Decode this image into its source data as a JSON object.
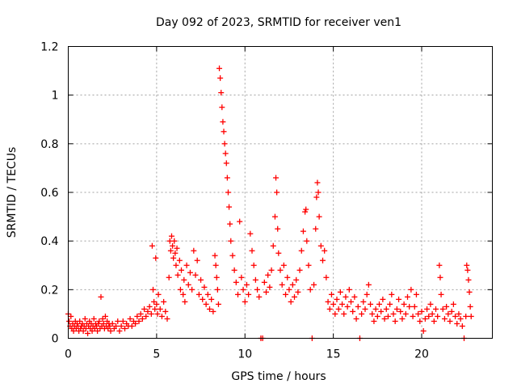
{
  "chart_data": {
    "type": "scatter",
    "title": "Day 092 of 2023, SRMTID for receiver ven1",
    "xlabel": "GPS time / hours",
    "ylabel": "SRMTID / TECUs",
    "xlim": [
      0,
      24
    ],
    "ylim": [
      0,
      1.2
    ],
    "xticks": [
      0,
      5,
      10,
      15,
      20
    ],
    "xtick_labels": [
      "0",
      "5",
      "10",
      "15",
      "20"
    ],
    "yticks": [
      0,
      0.2,
      0.4,
      0.6,
      0.8,
      1.0,
      1.2
    ],
    "ytick_labels": [
      "0",
      "0.2",
      "0.4",
      "0.6",
      "0.8",
      "1",
      "1.2"
    ],
    "grid": true,
    "marker": "plus",
    "color": "#ff0000",
    "series": [
      {
        "name": "SRMTID",
        "points": [
          [
            0.0,
            0.1
          ],
          [
            0.05,
            0.07
          ],
          [
            0.1,
            0.05
          ],
          [
            0.15,
            0.09
          ],
          [
            0.2,
            0.04
          ],
          [
            0.25,
            0.06
          ],
          [
            0.3,
            0.03
          ],
          [
            0.35,
            0.05
          ],
          [
            0.4,
            0.07
          ],
          [
            0.45,
            0.04
          ],
          [
            0.5,
            0.06
          ],
          [
            0.55,
            0.05
          ],
          [
            0.6,
            0.03
          ],
          [
            0.65,
            0.07
          ],
          [
            0.7,
            0.04
          ],
          [
            0.75,
            0.05
          ],
          [
            0.8,
            0.06
          ],
          [
            0.85,
            0.03
          ],
          [
            0.9,
            0.05
          ],
          [
            0.95,
            0.08
          ],
          [
            1.0,
            0.04
          ],
          [
            1.05,
            0.06
          ],
          [
            1.1,
            0.02
          ],
          [
            1.15,
            0.05
          ],
          [
            1.2,
            0.07
          ],
          [
            1.25,
            0.04
          ],
          [
            1.3,
            0.06
          ],
          [
            1.35,
            0.03
          ],
          [
            1.4,
            0.05
          ],
          [
            1.45,
            0.08
          ],
          [
            1.5,
            0.04
          ],
          [
            1.55,
            0.06
          ],
          [
            1.6,
            0.05
          ],
          [
            1.65,
            0.03
          ],
          [
            1.7,
            0.06
          ],
          [
            1.75,
            0.07
          ],
          [
            1.8,
            0.04
          ],
          [
            1.85,
            0.17
          ],
          [
            1.9,
            0.05
          ],
          [
            1.95,
            0.08
          ],
          [
            2.0,
            0.06
          ],
          [
            2.05,
            0.04
          ],
          [
            2.1,
            0.09
          ],
          [
            2.15,
            0.05
          ],
          [
            2.2,
            0.07
          ],
          [
            2.25,
            0.04
          ],
          [
            2.3,
            0.06
          ],
          [
            2.35,
            0.05
          ],
          [
            2.4,
            0.03
          ],
          [
            2.5,
            0.06
          ],
          [
            2.6,
            0.04
          ],
          [
            2.7,
            0.05
          ],
          [
            2.8,
            0.07
          ],
          [
            2.9,
            0.03
          ],
          [
            3.0,
            0.05
          ],
          [
            3.1,
            0.07
          ],
          [
            3.2,
            0.04
          ],
          [
            3.3,
            0.06
          ],
          [
            3.4,
            0.05
          ],
          [
            3.5,
            0.08
          ],
          [
            3.6,
            0.05
          ],
          [
            3.7,
            0.07
          ],
          [
            3.8,
            0.06
          ],
          [
            3.9,
            0.09
          ],
          [
            4.0,
            0.07
          ],
          [
            4.1,
            0.1
          ],
          [
            4.2,
            0.08
          ],
          [
            4.3,
            0.12
          ],
          [
            4.4,
            0.09
          ],
          [
            4.5,
            0.11
          ],
          [
            4.6,
            0.13
          ],
          [
            4.7,
            0.1
          ],
          [
            4.75,
            0.38
          ],
          [
            4.8,
            0.2
          ],
          [
            4.85,
            0.15
          ],
          [
            4.9,
            0.12
          ],
          [
            4.95,
            0.33
          ],
          [
            5.0,
            0.14
          ],
          [
            5.05,
            0.1
          ],
          [
            5.1,
            0.18
          ],
          [
            5.2,
            0.12
          ],
          [
            5.3,
            0.09
          ],
          [
            5.4,
            0.15
          ],
          [
            5.5,
            0.11
          ],
          [
            5.6,
            0.08
          ],
          [
            5.7,
            0.25
          ],
          [
            5.75,
            0.4
          ],
          [
            5.8,
            0.36
          ],
          [
            5.85,
            0.42
          ],
          [
            5.9,
            0.38
          ],
          [
            5.95,
            0.33
          ],
          [
            6.0,
            0.4
          ],
          [
            6.05,
            0.35
          ],
          [
            6.1,
            0.3
          ],
          [
            6.15,
            0.37
          ],
          [
            6.2,
            0.26
          ],
          [
            6.3,
            0.32
          ],
          [
            6.35,
            0.2
          ],
          [
            6.4,
            0.28
          ],
          [
            6.5,
            0.18
          ],
          [
            6.55,
            0.24
          ],
          [
            6.6,
            0.15
          ],
          [
            6.7,
            0.3
          ],
          [
            6.8,
            0.22
          ],
          [
            6.9,
            0.27
          ],
          [
            7.0,
            0.2
          ],
          [
            7.1,
            0.36
          ],
          [
            7.2,
            0.26
          ],
          [
            7.3,
            0.32
          ],
          [
            7.4,
            0.18
          ],
          [
            7.5,
            0.24
          ],
          [
            7.6,
            0.16
          ],
          [
            7.7,
            0.21
          ],
          [
            7.8,
            0.14
          ],
          [
            7.9,
            0.18
          ],
          [
            8.0,
            0.12
          ],
          [
            8.1,
            0.16
          ],
          [
            8.2,
            0.11
          ],
          [
            8.3,
            0.34
          ],
          [
            8.35,
            0.3
          ],
          [
            8.4,
            0.25
          ],
          [
            8.45,
            0.2
          ],
          [
            8.5,
            0.14
          ],
          [
            8.55,
            1.11
          ],
          [
            8.6,
            1.07
          ],
          [
            8.65,
            1.01
          ],
          [
            8.7,
            0.95
          ],
          [
            8.75,
            0.89
          ],
          [
            8.8,
            0.85
          ],
          [
            8.85,
            0.8
          ],
          [
            8.9,
            0.76
          ],
          [
            8.95,
            0.72
          ],
          [
            9.0,
            0.66
          ],
          [
            9.05,
            0.6
          ],
          [
            9.1,
            0.54
          ],
          [
            9.15,
            0.47
          ],
          [
            9.2,
            0.4
          ],
          [
            9.3,
            0.34
          ],
          [
            9.4,
            0.28
          ],
          [
            9.5,
            0.23
          ],
          [
            9.6,
            0.18
          ],
          [
            9.7,
            0.48
          ],
          [
            9.8,
            0.25
          ],
          [
            9.9,
            0.2
          ],
          [
            10.0,
            0.15
          ],
          [
            10.1,
            0.22
          ],
          [
            10.2,
            0.18
          ],
          [
            10.3,
            0.43
          ],
          [
            10.4,
            0.36
          ],
          [
            10.5,
            0.3
          ],
          [
            10.6,
            0.24
          ],
          [
            10.7,
            0.2
          ],
          [
            10.8,
            0.17
          ],
          [
            10.9,
            0.0
          ],
          [
            11.0,
            0.0
          ],
          [
            11.1,
            0.23
          ],
          [
            11.2,
            0.19
          ],
          [
            11.3,
            0.26
          ],
          [
            11.4,
            0.21
          ],
          [
            11.5,
            0.28
          ],
          [
            11.6,
            0.38
          ],
          [
            11.7,
            0.5
          ],
          [
            11.75,
            0.66
          ],
          [
            11.8,
            0.6
          ],
          [
            11.85,
            0.45
          ],
          [
            11.9,
            0.35
          ],
          [
            12.0,
            0.28
          ],
          [
            12.1,
            0.22
          ],
          [
            12.2,
            0.3
          ],
          [
            12.3,
            0.18
          ],
          [
            12.4,
            0.25
          ],
          [
            12.5,
            0.2
          ],
          [
            12.6,
            0.15
          ],
          [
            12.7,
            0.22
          ],
          [
            12.8,
            0.17
          ],
          [
            12.9,
            0.24
          ],
          [
            13.0,
            0.19
          ],
          [
            13.1,
            0.28
          ],
          [
            13.2,
            0.36
          ],
          [
            13.3,
            0.44
          ],
          [
            13.4,
            0.52
          ],
          [
            13.45,
            0.53
          ],
          [
            13.5,
            0.4
          ],
          [
            13.6,
            0.3
          ],
          [
            13.7,
            0.2
          ],
          [
            13.8,
            0.0
          ],
          [
            13.9,
            0.22
          ],
          [
            14.0,
            0.45
          ],
          [
            14.05,
            0.58
          ],
          [
            14.1,
            0.64
          ],
          [
            14.15,
            0.6
          ],
          [
            14.2,
            0.5
          ],
          [
            14.3,
            0.38
          ],
          [
            14.4,
            0.32
          ],
          [
            14.5,
            0.36
          ],
          [
            14.6,
            0.25
          ],
          [
            14.7,
            0.15
          ],
          [
            14.8,
            0.12
          ],
          [
            14.9,
            0.18
          ],
          [
            15.0,
            0.14
          ],
          [
            15.1,
            0.1
          ],
          [
            15.2,
            0.16
          ],
          [
            15.3,
            0.12
          ],
          [
            15.4,
            0.19
          ],
          [
            15.5,
            0.14
          ],
          [
            15.6,
            0.1
          ],
          [
            15.7,
            0.17
          ],
          [
            15.8,
            0.13
          ],
          [
            15.9,
            0.2
          ],
          [
            16.0,
            0.15
          ],
          [
            16.1,
            0.11
          ],
          [
            16.2,
            0.17
          ],
          [
            16.3,
            0.08
          ],
          [
            16.4,
            0.13
          ],
          [
            16.5,
            0.0
          ],
          [
            16.6,
            0.1
          ],
          [
            16.7,
            0.15
          ],
          [
            16.8,
            0.12
          ],
          [
            16.9,
            0.18
          ],
          [
            17.0,
            0.22
          ],
          [
            17.1,
            0.14
          ],
          [
            17.2,
            0.1
          ],
          [
            17.3,
            0.07
          ],
          [
            17.4,
            0.12
          ],
          [
            17.5,
            0.09
          ],
          [
            17.6,
            0.14
          ],
          [
            17.7,
            0.11
          ],
          [
            17.8,
            0.16
          ],
          [
            17.9,
            0.08
          ],
          [
            18.0,
            0.12
          ],
          [
            18.1,
            0.09
          ],
          [
            18.2,
            0.14
          ],
          [
            18.3,
            0.18
          ],
          [
            18.4,
            0.1
          ],
          [
            18.5,
            0.07
          ],
          [
            18.6,
            0.12
          ],
          [
            18.7,
            0.16
          ],
          [
            18.8,
            0.11
          ],
          [
            18.9,
            0.08
          ],
          [
            19.0,
            0.14
          ],
          [
            19.1,
            0.1
          ],
          [
            19.2,
            0.17
          ],
          [
            19.3,
            0.13
          ],
          [
            19.4,
            0.2
          ],
          [
            19.5,
            0.09
          ],
          [
            19.6,
            0.13
          ],
          [
            19.7,
            0.18
          ],
          [
            19.8,
            0.1
          ],
          [
            19.9,
            0.07
          ],
          [
            20.0,
            0.11
          ],
          [
            20.1,
            0.03
          ],
          [
            20.2,
            0.08
          ],
          [
            20.3,
            0.12
          ],
          [
            20.4,
            0.09
          ],
          [
            20.5,
            0.14
          ],
          [
            20.6,
            0.1
          ],
          [
            20.7,
            0.07
          ],
          [
            20.8,
            0.12
          ],
          [
            20.9,
            0.09
          ],
          [
            21.0,
            0.3
          ],
          [
            21.05,
            0.25
          ],
          [
            21.1,
            0.18
          ],
          [
            21.2,
            0.12
          ],
          [
            21.3,
            0.08
          ],
          [
            21.4,
            0.13
          ],
          [
            21.5,
            0.1
          ],
          [
            21.6,
            0.07
          ],
          [
            21.7,
            0.11
          ],
          [
            21.8,
            0.14
          ],
          [
            21.9,
            0.09
          ],
          [
            22.0,
            0.06
          ],
          [
            22.1,
            0.1
          ],
          [
            22.2,
            0.08
          ],
          [
            22.3,
            0.05
          ],
          [
            22.4,
            0.0
          ],
          [
            22.5,
            0.09
          ],
          [
            22.55,
            0.3
          ],
          [
            22.6,
            0.28
          ],
          [
            22.65,
            0.24
          ],
          [
            22.7,
            0.19
          ],
          [
            22.75,
            0.13
          ],
          [
            22.8,
            0.09
          ]
        ]
      }
    ]
  }
}
